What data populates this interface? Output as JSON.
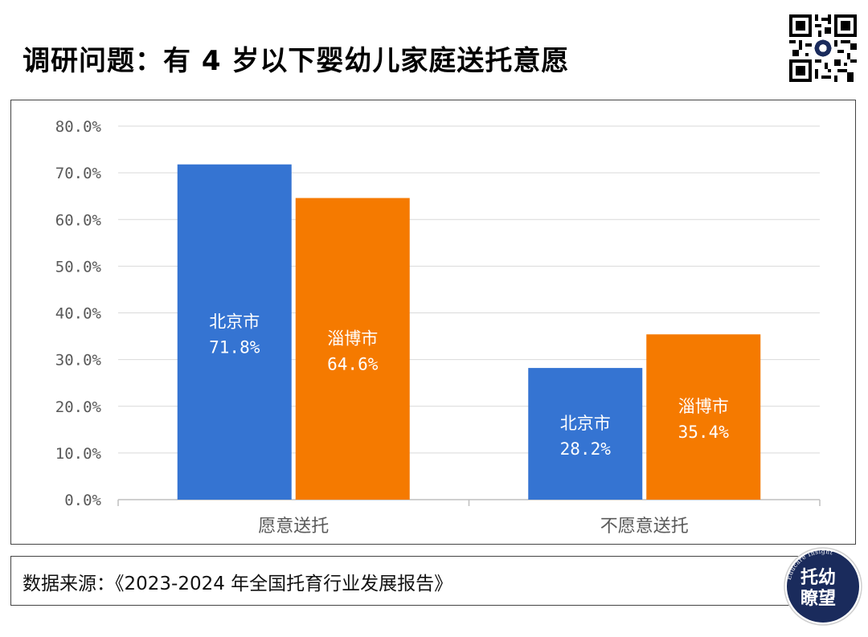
{
  "title": "调研问题：有 4 岁以下婴幼儿家庭送托意愿",
  "source": "数据来源：《2023-2024 年全国托育行业发展报告》",
  "logo": {
    "line1": "托幼",
    "line2": "瞭望",
    "ring_text": "Educare Insight"
  },
  "colors": {
    "beijing": "#3574D2",
    "zibo": "#F57A00",
    "logo_bg": "#1A2B5C"
  },
  "chart_data": {
    "type": "bar",
    "categories": [
      "愿意送托",
      "不愿意送托"
    ],
    "series": [
      {
        "name": "北京市",
        "values": [
          71.8,
          28.2
        ],
        "labels": [
          "71.8%",
          "28.2%"
        ]
      },
      {
        "name": "淄博市",
        "values": [
          64.6,
          35.4
        ],
        "labels": [
          "64.6%",
          "35.4%"
        ]
      }
    ],
    "y_ticks": [
      "0.0%",
      "10.0%",
      "20.0%",
      "30.0%",
      "40.0%",
      "50.0%",
      "60.0%",
      "70.0%",
      "80.0%"
    ],
    "ylim": [
      0,
      80
    ],
    "grid": true,
    "legend": "none"
  }
}
